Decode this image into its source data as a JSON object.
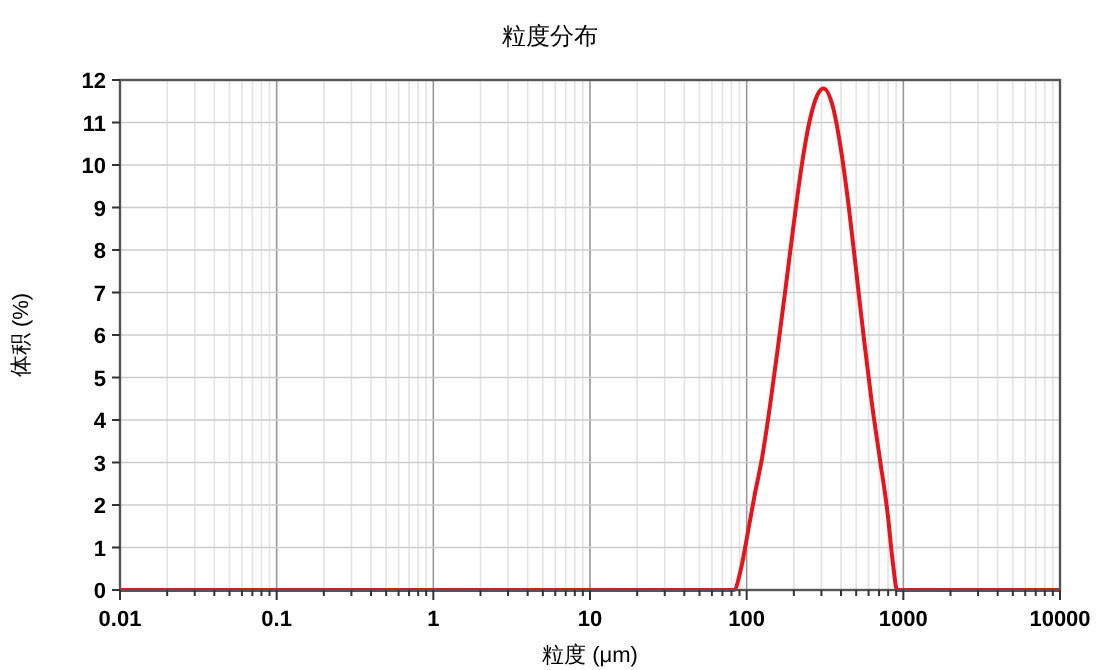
{
  "chart_data": {
    "type": "line",
    "title": "粒度分布",
    "xlabel": "粒度 (μm)",
    "ylabel": "体积 (%)",
    "log": "x",
    "xlim": [
      0.01,
      10000
    ],
    "xticks": [
      0.01,
      0.1,
      1,
      10,
      100,
      1000,
      10000
    ],
    "ylim": [
      0,
      12
    ],
    "yticks": [
      0,
      1,
      2,
      3,
      4,
      5,
      6,
      7,
      8,
      9,
      10,
      11,
      12
    ],
    "grid": true,
    "marker": "none",
    "line_style": "solid",
    "x": [
      0.01,
      83,
      92,
      100,
      112,
      126,
      141,
      158,
      178,
      200,
      224,
      251,
      282,
      309,
      355,
      398,
      447,
      501,
      562,
      631,
      708,
      794,
      860,
      912,
      10000
    ],
    "series": [
      {
        "color": "#e8141b",
        "values": [
          0,
          0,
          0.5,
          1.2,
          2.2,
          3.15,
          4.34,
          5.69,
          7.16,
          8.63,
          9.96,
          11.0,
          11.64,
          11.8,
          11.37,
          10.41,
          9.06,
          7.48,
          5.87,
          4.37,
          3.09,
          1.8,
          0.6,
          0,
          0
        ]
      }
    ]
  }
}
